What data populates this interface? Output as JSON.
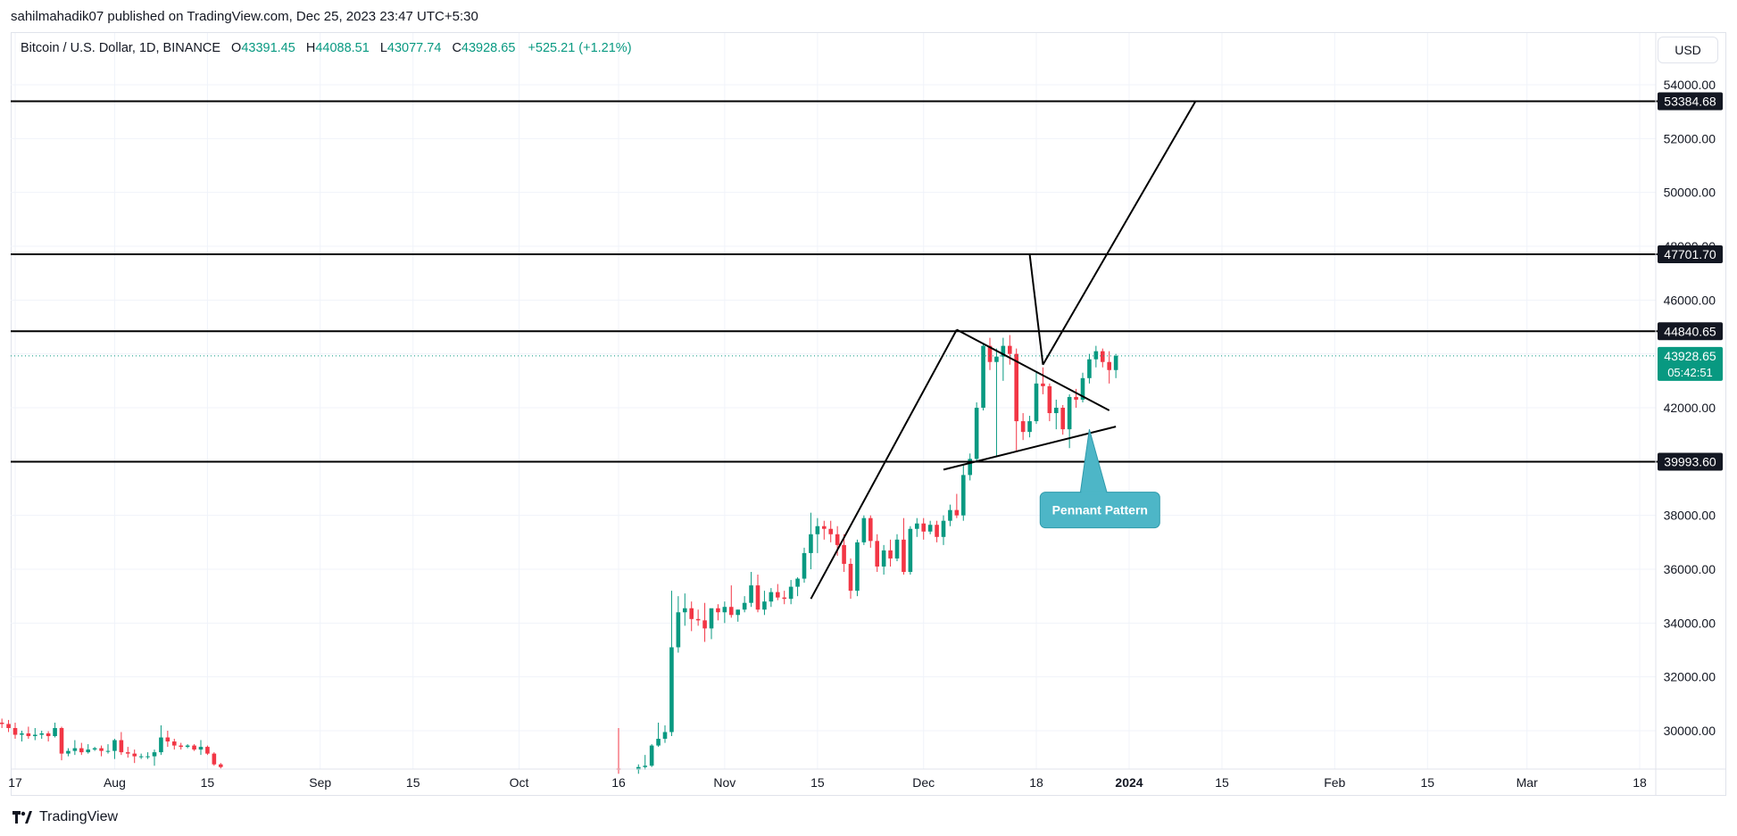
{
  "header": {
    "published_text": "sahilmahadik07 published on TradingView.com, Dec 25, 2023 23:47 UTC+5:30"
  },
  "legend": {
    "symbol": "Bitcoin / U.S. Dollar, 1D, BINANCE",
    "open_label": "O",
    "open": "43391.45",
    "high_label": "H",
    "high": "44088.51",
    "low_label": "L",
    "low": "43077.74",
    "close_label": "C",
    "close": "43928.65",
    "change": "+525.21 (+1.21%)"
  },
  "currency_button": {
    "label": "USD"
  },
  "footer": {
    "brand": "TradingView"
  },
  "colors": {
    "up": "#089981",
    "down": "#f23645",
    "grid": "#f0f3fa",
    "line": "#000000",
    "callout_fill": "#4db6c7",
    "callout_border": "#2e9aab",
    "text": "#131722"
  },
  "chart_data": {
    "type": "candlestick",
    "ylim": [
      28800,
      55400
    ],
    "y_ticks": [
      "30000.00",
      "32000.00",
      "34000.00",
      "36000.00",
      "38000.00",
      "40000.00",
      "42000.00",
      "44000.00",
      "46000.00",
      "48000.00",
      "50000.00",
      "52000.00",
      "54000.00"
    ],
    "x_ticks": [
      {
        "label": "17",
        "date": "2023-07-17"
      },
      {
        "label": "Aug",
        "date": "2023-08-01"
      },
      {
        "label": "15",
        "date": "2023-08-15"
      },
      {
        "label": "Sep",
        "date": "2023-09-01"
      },
      {
        "label": "15",
        "date": "2023-09-15"
      },
      {
        "label": "Oct",
        "date": "2023-10-01"
      },
      {
        "label": "16",
        "date": "2023-10-16"
      },
      {
        "label": "Nov",
        "date": "2023-11-01"
      },
      {
        "label": "15",
        "date": "2023-11-15"
      },
      {
        "label": "Dec",
        "date": "2023-12-01"
      },
      {
        "label": "18",
        "date": "2023-12-18"
      },
      {
        "label": "2024",
        "date": "2024-01-01",
        "bold": true
      },
      {
        "label": "15",
        "date": "2024-01-15"
      },
      {
        "label": "Feb",
        "date": "2024-02-01"
      },
      {
        "label": "15",
        "date": "2024-02-15"
      },
      {
        "label": "Mar",
        "date": "2024-03-01"
      },
      {
        "label": "18",
        "date": "2024-03-18"
      }
    ],
    "levels": [
      {
        "value": 53384.68,
        "label": "53384.68"
      },
      {
        "value": 47701.7,
        "label": "47701.70"
      },
      {
        "value": 44840.65,
        "label": "44840.65"
      },
      {
        "value": 39993.6,
        "label": "39993.60"
      }
    ],
    "last_price": {
      "value": 43928.65,
      "label": "43928.65",
      "countdown": "05:42:51"
    },
    "annotation": {
      "text": "Pennant Pattern",
      "date": "2023-12-28",
      "value": 38200,
      "pointer": {
        "date": "2023-12-26",
        "value": 41200
      }
    },
    "drawings": [
      {
        "from": {
          "date": "2023-11-14",
          "value": 34900
        },
        "to": {
          "date": "2023-12-06",
          "value": 44900
        }
      },
      {
        "from": {
          "date": "2023-12-06",
          "value": 44900
        },
        "to": {
          "date": "2023-12-29",
          "value": 41900
        }
      },
      {
        "from": {
          "date": "2023-12-04",
          "value": 39700
        },
        "to": {
          "date": "2023-12-30",
          "value": 41300
        }
      },
      {
        "from": {
          "date": "2023-12-17",
          "value": 47700
        },
        "to": {
          "date": "2023-12-19",
          "value": 43600
        }
      },
      {
        "from": {
          "date": "2023-12-19",
          "value": 43600
        },
        "to": {
          "date": "2024-01-11",
          "value": 53384
        }
      }
    ],
    "candles": [
      {
        "date": "2023-07-15",
        "o": 30300,
        "h": 30450,
        "l": 30100,
        "c": 30250
      },
      {
        "date": "2023-07-16",
        "o": 30250,
        "h": 30400,
        "l": 29950,
        "c": 30100
      },
      {
        "date": "2023-07-17",
        "o": 30100,
        "h": 30300,
        "l": 29700,
        "c": 29850
      },
      {
        "date": "2023-07-18",
        "o": 29850,
        "h": 30000,
        "l": 29600,
        "c": 29900
      },
      {
        "date": "2023-07-19",
        "o": 29900,
        "h": 30150,
        "l": 29700,
        "c": 29800
      },
      {
        "date": "2023-07-20",
        "o": 29800,
        "h": 30100,
        "l": 29650,
        "c": 29850
      },
      {
        "date": "2023-07-21",
        "o": 29850,
        "h": 30000,
        "l": 29700,
        "c": 29900
      },
      {
        "date": "2023-07-22",
        "o": 29900,
        "h": 29980,
        "l": 29600,
        "c": 29800
      },
      {
        "date": "2023-07-23",
        "o": 29800,
        "h": 30300,
        "l": 29750,
        "c": 30100
      },
      {
        "date": "2023-07-24",
        "o": 30100,
        "h": 30150,
        "l": 28900,
        "c": 29150
      },
      {
        "date": "2023-07-25",
        "o": 29150,
        "h": 29350,
        "l": 29050,
        "c": 29250
      },
      {
        "date": "2023-07-26",
        "o": 29250,
        "h": 29650,
        "l": 29100,
        "c": 29350
      },
      {
        "date": "2023-07-27",
        "o": 29350,
        "h": 29550,
        "l": 29100,
        "c": 29200
      },
      {
        "date": "2023-07-28",
        "o": 29200,
        "h": 29500,
        "l": 29150,
        "c": 29300
      },
      {
        "date": "2023-07-29",
        "o": 29300,
        "h": 29400,
        "l": 29250,
        "c": 29350
      },
      {
        "date": "2023-07-30",
        "o": 29350,
        "h": 29450,
        "l": 29050,
        "c": 29250
      },
      {
        "date": "2023-07-31",
        "o": 29250,
        "h": 29500,
        "l": 29150,
        "c": 29250
      },
      {
        "date": "2023-08-01",
        "o": 29250,
        "h": 29700,
        "l": 28950,
        "c": 29650
      },
      {
        "date": "2023-08-02",
        "o": 29650,
        "h": 29950,
        "l": 29100,
        "c": 29200
      },
      {
        "date": "2023-08-03",
        "o": 29200,
        "h": 29400,
        "l": 29000,
        "c": 29150
      },
      {
        "date": "2023-08-04",
        "o": 29150,
        "h": 29300,
        "l": 28800,
        "c": 29050
      },
      {
        "date": "2023-08-05",
        "o": 29050,
        "h": 29150,
        "l": 28950,
        "c": 29050
      },
      {
        "date": "2023-08-06",
        "o": 29050,
        "h": 29200,
        "l": 28950,
        "c": 29050
      },
      {
        "date": "2023-08-07",
        "o": 29050,
        "h": 29300,
        "l": 28700,
        "c": 29200
      },
      {
        "date": "2023-08-08",
        "o": 29200,
        "h": 30200,
        "l": 29100,
        "c": 29750
      },
      {
        "date": "2023-08-09",
        "o": 29750,
        "h": 30000,
        "l": 29400,
        "c": 29600
      },
      {
        "date": "2023-08-10",
        "o": 29600,
        "h": 29700,
        "l": 29300,
        "c": 29450
      },
      {
        "date": "2023-08-11",
        "o": 29450,
        "h": 29550,
        "l": 29300,
        "c": 29400
      },
      {
        "date": "2023-08-12",
        "o": 29400,
        "h": 29500,
        "l": 29350,
        "c": 29450
      },
      {
        "date": "2023-08-13",
        "o": 29450,
        "h": 29500,
        "l": 29250,
        "c": 29300
      },
      {
        "date": "2023-08-14",
        "o": 29300,
        "h": 29650,
        "l": 29100,
        "c": 29400
      },
      {
        "date": "2023-08-15",
        "o": 29400,
        "h": 29450,
        "l": 29100,
        "c": 29150
      },
      {
        "date": "2023-08-16",
        "o": 29150,
        "h": 29200,
        "l": 28700,
        "c": 28750
      },
      {
        "date": "2023-08-17",
        "o": 28750,
        "h": 28800,
        "l": 28600,
        "c": 28650
      },
      {
        "date": "2023-10-16",
        "o": 28600,
        "h": 30100,
        "l": 28400,
        "c": 28550
      },
      {
        "date": "2023-10-19",
        "o": 28550,
        "h": 28750,
        "l": 28400,
        "c": 28650
      },
      {
        "date": "2023-10-20",
        "o": 28650,
        "h": 29100,
        "l": 28550,
        "c": 28700
      },
      {
        "date": "2023-10-21",
        "o": 28700,
        "h": 29500,
        "l": 28650,
        "c": 29450
      },
      {
        "date": "2023-10-22",
        "o": 29450,
        "h": 30300,
        "l": 29400,
        "c": 29700
      },
      {
        "date": "2023-10-23",
        "o": 29700,
        "h": 30200,
        "l": 29550,
        "c": 29950
      },
      {
        "date": "2023-10-24",
        "o": 29950,
        "h": 35200,
        "l": 29800,
        "c": 33100
      },
      {
        "date": "2023-10-25",
        "o": 33100,
        "h": 35000,
        "l": 32900,
        "c": 34400
      },
      {
        "date": "2023-10-26",
        "o": 34400,
        "h": 35100,
        "l": 33900,
        "c": 34550
      },
      {
        "date": "2023-10-27",
        "o": 34550,
        "h": 34800,
        "l": 33700,
        "c": 34150
      },
      {
        "date": "2023-10-28",
        "o": 34150,
        "h": 34500,
        "l": 33900,
        "c": 34100
      },
      {
        "date": "2023-10-29",
        "o": 34100,
        "h": 34750,
        "l": 33300,
        "c": 33800
      },
      {
        "date": "2023-10-30",
        "o": 33800,
        "h": 34500,
        "l": 33400,
        "c": 34550
      },
      {
        "date": "2023-10-31",
        "o": 34550,
        "h": 34700,
        "l": 34100,
        "c": 34400
      },
      {
        "date": "2023-11-01",
        "o": 34400,
        "h": 34800,
        "l": 34000,
        "c": 34600
      },
      {
        "date": "2023-11-02",
        "o": 34600,
        "h": 35400,
        "l": 34200,
        "c": 34300
      },
      {
        "date": "2023-11-03",
        "o": 34300,
        "h": 34500,
        "l": 34050,
        "c": 34500
      },
      {
        "date": "2023-11-04",
        "o": 34500,
        "h": 35000,
        "l": 34400,
        "c": 34750
      },
      {
        "date": "2023-11-05",
        "o": 34750,
        "h": 35900,
        "l": 34600,
        "c": 35400
      },
      {
        "date": "2023-11-06",
        "o": 35400,
        "h": 35800,
        "l": 34400,
        "c": 34500
      },
      {
        "date": "2023-11-07",
        "o": 34500,
        "h": 35200,
        "l": 34300,
        "c": 34800
      },
      {
        "date": "2023-11-08",
        "o": 34800,
        "h": 35300,
        "l": 34600,
        "c": 35150
      },
      {
        "date": "2023-11-09",
        "o": 35150,
        "h": 35450,
        "l": 34850,
        "c": 34950
      },
      {
        "date": "2023-11-10",
        "o": 34950,
        "h": 35200,
        "l": 34700,
        "c": 34900
      },
      {
        "date": "2023-11-11",
        "o": 34900,
        "h": 35600,
        "l": 34700,
        "c": 35350
      },
      {
        "date": "2023-11-12",
        "o": 35350,
        "h": 35700,
        "l": 35000,
        "c": 35650
      },
      {
        "date": "2023-11-13",
        "o": 35650,
        "h": 36800,
        "l": 35500,
        "c": 36600
      },
      {
        "date": "2023-11-14",
        "o": 36600,
        "h": 38100,
        "l": 36000,
        "c": 37300
      },
      {
        "date": "2023-11-15",
        "o": 37300,
        "h": 37900,
        "l": 36600,
        "c": 37600
      },
      {
        "date": "2023-11-16",
        "o": 37600,
        "h": 37800,
        "l": 37100,
        "c": 37500
      },
      {
        "date": "2023-11-17",
        "o": 37500,
        "h": 37800,
        "l": 37000,
        "c": 37300
      },
      {
        "date": "2023-11-18",
        "o": 37300,
        "h": 37600,
        "l": 36500,
        "c": 36900
      },
      {
        "date": "2023-11-19",
        "o": 36900,
        "h": 37300,
        "l": 35900,
        "c": 36200
      },
      {
        "date": "2023-11-20",
        "o": 36200,
        "h": 36400,
        "l": 34900,
        "c": 35200
      },
      {
        "date": "2023-11-21",
        "o": 35200,
        "h": 37100,
        "l": 35000,
        "c": 37000
      },
      {
        "date": "2023-11-22",
        "o": 37000,
        "h": 38000,
        "l": 36900,
        "c": 37900
      },
      {
        "date": "2023-11-23",
        "o": 37900,
        "h": 38000,
        "l": 36800,
        "c": 37050
      },
      {
        "date": "2023-11-24",
        "o": 37050,
        "h": 37300,
        "l": 35900,
        "c": 36100
      },
      {
        "date": "2023-11-25",
        "o": 36100,
        "h": 36900,
        "l": 35800,
        "c": 36700
      },
      {
        "date": "2023-11-26",
        "o": 36700,
        "h": 37100,
        "l": 36100,
        "c": 36400
      },
      {
        "date": "2023-11-27",
        "o": 36400,
        "h": 37300,
        "l": 36300,
        "c": 37100
      },
      {
        "date": "2023-11-28",
        "o": 37100,
        "h": 37900,
        "l": 35800,
        "c": 35900
      },
      {
        "date": "2023-11-29",
        "o": 35900,
        "h": 37600,
        "l": 35800,
        "c": 37500
      },
      {
        "date": "2023-11-30",
        "o": 37500,
        "h": 37900,
        "l": 37200,
        "c": 37700
      },
      {
        "date": "2023-12-01",
        "o": 37700,
        "h": 37900,
        "l": 37100,
        "c": 37400
      },
      {
        "date": "2023-12-02",
        "o": 37400,
        "h": 37800,
        "l": 37300,
        "c": 37650
      },
      {
        "date": "2023-12-03",
        "o": 37650,
        "h": 37800,
        "l": 37000,
        "c": 37200
      },
      {
        "date": "2023-12-04",
        "o": 37200,
        "h": 38000,
        "l": 36900,
        "c": 37800
      },
      {
        "date": "2023-12-05",
        "o": 37800,
        "h": 38400,
        "l": 37600,
        "c": 38200
      },
      {
        "date": "2023-12-06",
        "o": 38200,
        "h": 38800,
        "l": 37900,
        "c": 38000
      },
      {
        "date": "2023-12-07",
        "o": 38000,
        "h": 39900,
        "l": 37800,
        "c": 39500
      },
      {
        "date": "2023-12-08",
        "o": 39500,
        "h": 40300,
        "l": 39300,
        "c": 40100
      },
      {
        "date": "2023-12-09",
        "o": 40100,
        "h": 42200,
        "l": 40000,
        "c": 42000
      },
      {
        "date": "2023-12-10",
        "o": 42000,
        "h": 44400,
        "l": 41900,
        "c": 44300
      },
      {
        "date": "2023-12-11",
        "o": 44300,
        "h": 44600,
        "l": 43400,
        "c": 43700
      },
      {
        "date": "2023-12-12",
        "o": 43700,
        "h": 44200,
        "l": 40200,
        "c": 43900
      },
      {
        "date": "2023-12-13",
        "o": 43900,
        "h": 44600,
        "l": 43000,
        "c": 44300
      },
      {
        "date": "2023-12-14",
        "o": 44300,
        "h": 44700,
        "l": 43600,
        "c": 44000
      },
      {
        "date": "2023-12-15",
        "o": 44000,
        "h": 44200,
        "l": 40400,
        "c": 41500
      },
      {
        "date": "2023-12-16",
        "o": 41500,
        "h": 41800,
        "l": 40800,
        "c": 41100
      },
      {
        "date": "2023-12-17",
        "o": 41100,
        "h": 41700,
        "l": 40900,
        "c": 41500
      },
      {
        "date": "2023-12-18",
        "o": 41500,
        "h": 43300,
        "l": 41400,
        "c": 42900
      },
      {
        "date": "2023-12-19",
        "o": 42900,
        "h": 43500,
        "l": 42500,
        "c": 42800
      },
      {
        "date": "2023-12-20",
        "o": 42800,
        "h": 42900,
        "l": 41500,
        "c": 41800
      },
      {
        "date": "2023-12-21",
        "o": 41800,
        "h": 42300,
        "l": 41200,
        "c": 42000
      },
      {
        "date": "2023-12-22",
        "o": 42000,
        "h": 42100,
        "l": 41000,
        "c": 41200
      },
      {
        "date": "2023-12-23",
        "o": 41200,
        "h": 42500,
        "l": 40500,
        "c": 42400
      },
      {
        "date": "2023-12-24",
        "o": 42400,
        "h": 42700,
        "l": 42000,
        "c": 42300
      },
      {
        "date": "2023-12-25",
        "o": 42300,
        "h": 43300,
        "l": 42200,
        "c": 43100
      },
      {
        "date": "2023-12-26",
        "o": 43100,
        "h": 44000,
        "l": 42900,
        "c": 43800
      },
      {
        "date": "2023-12-27",
        "o": 43800,
        "h": 44300,
        "l": 43500,
        "c": 44100
      },
      {
        "date": "2023-12-28",
        "o": 44100,
        "h": 44200,
        "l": 43500,
        "c": 43700
      },
      {
        "date": "2023-12-29",
        "o": 43700,
        "h": 44100,
        "l": 42900,
        "c": 43400
      },
      {
        "date": "2023-12-30",
        "o": 43400,
        "h": 44000,
        "l": 43100,
        "c": 43929
      }
    ]
  }
}
